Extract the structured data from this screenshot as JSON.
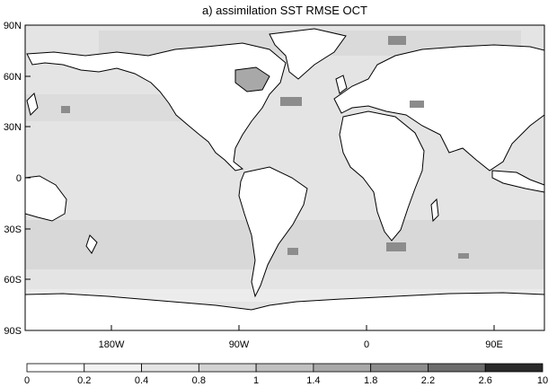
{
  "title": "a) assimilation SST RMSE OCT",
  "lat_labels": [
    "90N",
    "60N",
    "30N",
    "0",
    "30S",
    "60S",
    "90S"
  ],
  "lon_labels": [
    "180W",
    "90W",
    "0",
    "90E"
  ],
  "colorbar": {
    "ticks": [
      "0",
      "0.2",
      "0.4",
      "0.8",
      "1",
      "1.4",
      "1.8",
      "2.2",
      "2.6",
      "10"
    ],
    "colors": [
      "#ffffff",
      "#f2f2f2",
      "#e4e4e4",
      "#d2d2d2",
      "#c0c0c0",
      "#a8a8a8",
      "#8c8c8c",
      "#6c6c6c",
      "#2a2a2a"
    ]
  },
  "colors": {
    "land": "#ffffff",
    "ocean_low": "#f2f2f2",
    "ocean_mid": "#e4e4e4",
    "ocean_high": "#d2d2d2",
    "hotspot": "#8c8c8c",
    "coast": "#000000"
  }
}
